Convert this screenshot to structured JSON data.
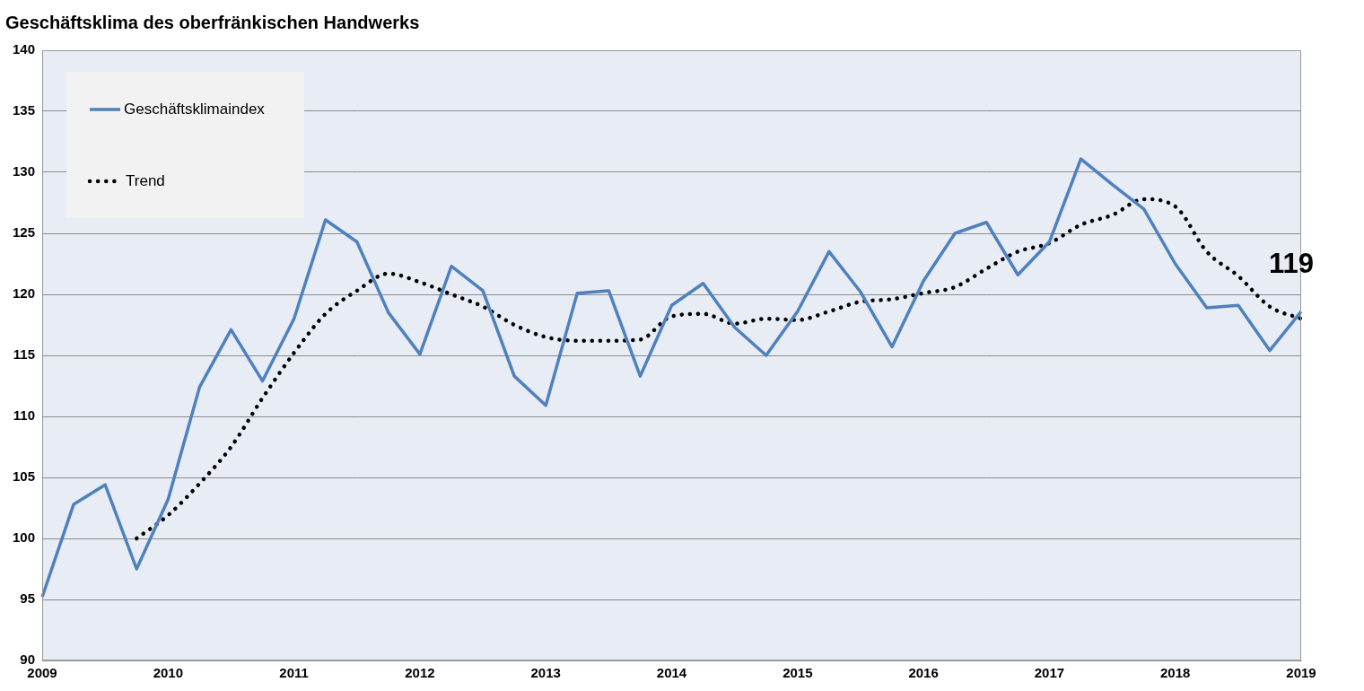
{
  "chart_data": {
    "type": "line",
    "title": "Geschäftsklima des oberfränkischen Handwerks",
    "categories": [
      "2009",
      null,
      null,
      null,
      "2010",
      null,
      null,
      null,
      "2011",
      null,
      null,
      null,
      "2012",
      null,
      null,
      null,
      "2013",
      null,
      null,
      null,
      "2014",
      null,
      null,
      null,
      "2015",
      null,
      null,
      null,
      "2016",
      null,
      null,
      null,
      "2017",
      null,
      null,
      null,
      "2018",
      null,
      null,
      null,
      "2019"
    ],
    "series": [
      {
        "name": "Geschäftsklimaindex",
        "color": "#4f81bd",
        "line_style": "solid",
        "values": [
          95.2,
          102.8,
          104.4,
          97.5,
          103.2,
          112.4,
          117.1,
          112.9,
          118.0,
          126.1,
          124.3,
          118.5,
          115.1,
          122.3,
          120.3,
          113.3,
          110.9,
          120.1,
          120.3,
          113.3,
          119.1,
          120.9,
          117.3,
          115.0,
          118.6,
          123.5,
          120.2,
          115.7,
          121.1,
          125.0,
          125.9,
          121.6,
          124.3,
          131.1,
          129.0,
          127.0,
          122.5,
          118.9,
          119.1,
          115.4,
          118.6
        ]
      },
      {
        "name": "Trend",
        "color": "#000000",
        "line_style": "dotted",
        "values": [
          null,
          null,
          null,
          100.0,
          101.9,
          104.5,
          107.5,
          111.5,
          115.2,
          118.4,
          120.3,
          121.7,
          121.0,
          120.0,
          119.0,
          117.5,
          116.5,
          116.2,
          116.2,
          116.3,
          118.2,
          118.4,
          117.6,
          118.0,
          117.9,
          118.6,
          119.4,
          119.6,
          120.1,
          120.6,
          122.1,
          123.5,
          124.2,
          125.7,
          126.5,
          127.8,
          127.2,
          123.5,
          121.5,
          119.0,
          118.0
        ]
      }
    ],
    "annotations": [
      {
        "text": "119"
      }
    ],
    "ylim": [
      90,
      140
    ],
    "yticks": [
      90,
      95,
      100,
      105,
      110,
      115,
      120,
      125,
      130,
      135,
      140
    ],
    "grid": true,
    "legend": "upper left"
  }
}
